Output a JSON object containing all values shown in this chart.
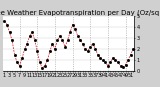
{
  "title": "Milwaukee Weather Evapotranspiration per Day (Oz/sq ft)",
  "y_values": [
    4.5,
    4.2,
    3.5,
    2.8,
    1.5,
    0.8,
    0.5,
    1.2,
    2.0,
    2.5,
    3.2,
    3.5,
    2.8,
    1.8,
    0.8,
    0.3,
    0.5,
    1.0,
    1.8,
    2.5,
    2.0,
    2.8,
    3.2,
    2.8,
    2.2,
    2.8,
    3.5,
    4.2,
    3.8,
    3.2,
    2.8,
    2.5,
    2.0,
    1.8,
    2.2,
    2.5,
    2.0,
    1.5,
    1.2,
    1.0,
    0.8,
    0.5,
    0.8,
    1.2,
    1.0,
    0.8,
    0.5,
    0.4,
    0.6,
    1.0,
    1.5,
    2.0
  ],
  "ylim": [
    0,
    5
  ],
  "yticks": [
    0,
    1,
    2,
    3,
    4,
    5
  ],
  "ytick_labels": [
    "0",
    "1",
    "2",
    "3",
    "4",
    "5"
  ],
  "bg_color": "#d0d0d0",
  "plot_bg": "#ffffff",
  "line_color": "#dd0000",
  "dot_color": "#000000",
  "grid_color": "#999999",
  "title_fontsize": 5.0,
  "tick_fontsize": 3.5,
  "vline_positions": [
    6,
    13,
    20,
    27,
    34,
    41,
    48
  ],
  "n_points": 52
}
